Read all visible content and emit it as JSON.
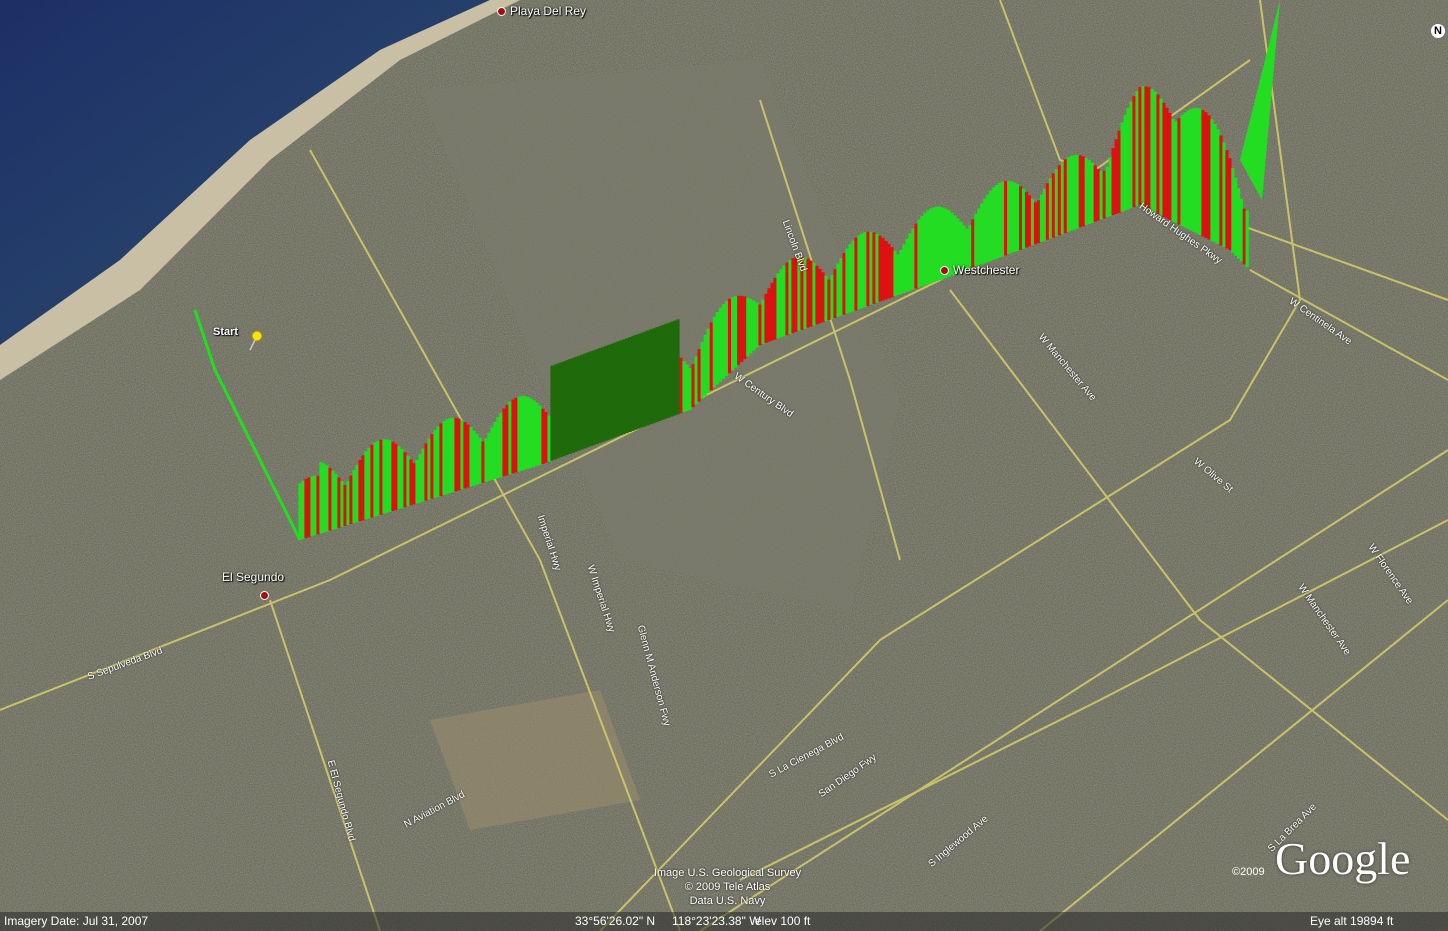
{
  "map": {
    "places": {
      "playa_del_rey": "Playa Del Rey",
      "westchester": "Westchester",
      "el_segundo": "El Segundo",
      "start": "Start"
    },
    "roads": {
      "sepulveda": "S Sepulveda Blvd",
      "el_segundo_blvd": "E El Segundo Blvd",
      "aviation": "N Aviation Blvd",
      "imperial": "Imperial Hwy",
      "w_imperial": "W Imperial Hwy",
      "glenn_anderson": "Glenn M Anderson Fwy",
      "la_cienega": "S La Cienega Blvd",
      "san_diego": "San Diego Fwy",
      "inglewood": "S Inglewood Ave",
      "la_brea": "S La Brea Ave",
      "manchester": "W Manchester Ave",
      "w_manchester2": "W Manchester Ave",
      "florence": "W Florence Ave",
      "olive": "W Olive St",
      "century": "W Century Blvd",
      "lincoln": "Lincoln Blvd",
      "howard_hughes": "Howard Hughes Pkwy",
      "centinela": "W Centinela Ave"
    },
    "profile_colors": {
      "high": "#22dd22",
      "low": "#dd1111",
      "flat": "#1f6a0a"
    }
  },
  "attribution": {
    "line1": "Image U.S. Geological Survey",
    "line2": "© 2009 Tele Atlas",
    "line3": "Data U.S. Navy"
  },
  "logo": {
    "text": "Google",
    "year": "©2009"
  },
  "status": {
    "imagery_date": "Imagery Date: Jul 31, 2007",
    "lat": "33°56'26.02\" N",
    "lon": "118°23'23.38\" W",
    "elev": "elev   100 ft",
    "eye_alt": "Eye alt   19894 ft"
  },
  "compass": {
    "label": "N"
  }
}
